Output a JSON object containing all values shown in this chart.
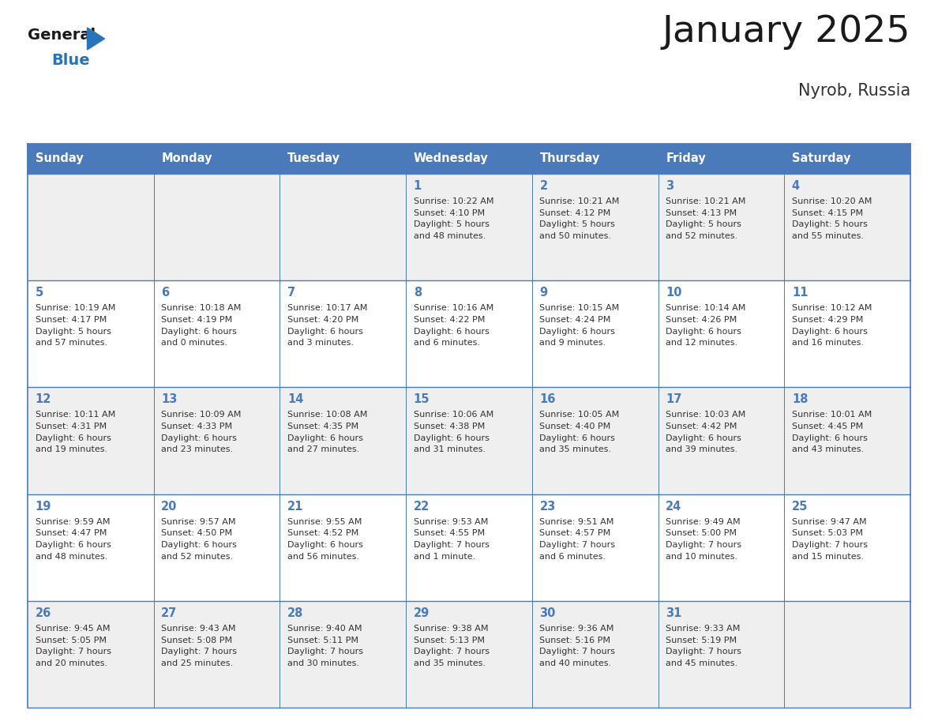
{
  "title": "January 2025",
  "subtitle": "Nyrob, Russia",
  "days_of_week": [
    "Sunday",
    "Monday",
    "Tuesday",
    "Wednesday",
    "Thursday",
    "Friday",
    "Saturday"
  ],
  "header_bg": "#4a7aba",
  "header_text_color": "#FFFFFF",
  "cell_bg_even": "#efefef",
  "cell_bg_odd": "#FFFFFF",
  "cell_border_color": "#4a7aba",
  "title_color": "#1a1a1a",
  "subtitle_color": "#333333",
  "day_number_color": "#4a7aba",
  "cell_text_color": "#333333",
  "logo_general_color": "#1a1a1a",
  "logo_blue_color": "#2874b8",
  "weeks": [
    [
      {
        "date": "",
        "sunrise": "",
        "sunset": "",
        "daylight": ""
      },
      {
        "date": "",
        "sunrise": "",
        "sunset": "",
        "daylight": ""
      },
      {
        "date": "",
        "sunrise": "",
        "sunset": "",
        "daylight": ""
      },
      {
        "date": "1",
        "sunrise": "10:22 AM",
        "sunset": "4:10 PM",
        "daylight": "5 hours and 48 minutes."
      },
      {
        "date": "2",
        "sunrise": "10:21 AM",
        "sunset": "4:12 PM",
        "daylight": "5 hours and 50 minutes."
      },
      {
        "date": "3",
        "sunrise": "10:21 AM",
        "sunset": "4:13 PM",
        "daylight": "5 hours and 52 minutes."
      },
      {
        "date": "4",
        "sunrise": "10:20 AM",
        "sunset": "4:15 PM",
        "daylight": "5 hours and 55 minutes."
      }
    ],
    [
      {
        "date": "5",
        "sunrise": "10:19 AM",
        "sunset": "4:17 PM",
        "daylight": "5 hours and 57 minutes."
      },
      {
        "date": "6",
        "sunrise": "10:18 AM",
        "sunset": "4:19 PM",
        "daylight": "6 hours and 0 minutes."
      },
      {
        "date": "7",
        "sunrise": "10:17 AM",
        "sunset": "4:20 PM",
        "daylight": "6 hours and 3 minutes."
      },
      {
        "date": "8",
        "sunrise": "10:16 AM",
        "sunset": "4:22 PM",
        "daylight": "6 hours and 6 minutes."
      },
      {
        "date": "9",
        "sunrise": "10:15 AM",
        "sunset": "4:24 PM",
        "daylight": "6 hours and 9 minutes."
      },
      {
        "date": "10",
        "sunrise": "10:14 AM",
        "sunset": "4:26 PM",
        "daylight": "6 hours and 12 minutes."
      },
      {
        "date": "11",
        "sunrise": "10:12 AM",
        "sunset": "4:29 PM",
        "daylight": "6 hours and 16 minutes."
      }
    ],
    [
      {
        "date": "12",
        "sunrise": "10:11 AM",
        "sunset": "4:31 PM",
        "daylight": "6 hours and 19 minutes."
      },
      {
        "date": "13",
        "sunrise": "10:09 AM",
        "sunset": "4:33 PM",
        "daylight": "6 hours and 23 minutes."
      },
      {
        "date": "14",
        "sunrise": "10:08 AM",
        "sunset": "4:35 PM",
        "daylight": "6 hours and 27 minutes."
      },
      {
        "date": "15",
        "sunrise": "10:06 AM",
        "sunset": "4:38 PM",
        "daylight": "6 hours and 31 minutes."
      },
      {
        "date": "16",
        "sunrise": "10:05 AM",
        "sunset": "4:40 PM",
        "daylight": "6 hours and 35 minutes."
      },
      {
        "date": "17",
        "sunrise": "10:03 AM",
        "sunset": "4:42 PM",
        "daylight": "6 hours and 39 minutes."
      },
      {
        "date": "18",
        "sunrise": "10:01 AM",
        "sunset": "4:45 PM",
        "daylight": "6 hours and 43 minutes."
      }
    ],
    [
      {
        "date": "19",
        "sunrise": "9:59 AM",
        "sunset": "4:47 PM",
        "daylight": "6 hours and 48 minutes."
      },
      {
        "date": "20",
        "sunrise": "9:57 AM",
        "sunset": "4:50 PM",
        "daylight": "6 hours and 52 minutes."
      },
      {
        "date": "21",
        "sunrise": "9:55 AM",
        "sunset": "4:52 PM",
        "daylight": "6 hours and 56 minutes."
      },
      {
        "date": "22",
        "sunrise": "9:53 AM",
        "sunset": "4:55 PM",
        "daylight": "7 hours and 1 minute."
      },
      {
        "date": "23",
        "sunrise": "9:51 AM",
        "sunset": "4:57 PM",
        "daylight": "7 hours and 6 minutes."
      },
      {
        "date": "24",
        "sunrise": "9:49 AM",
        "sunset": "5:00 PM",
        "daylight": "7 hours and 10 minutes."
      },
      {
        "date": "25",
        "sunrise": "9:47 AM",
        "sunset": "5:03 PM",
        "daylight": "7 hours and 15 minutes."
      }
    ],
    [
      {
        "date": "26",
        "sunrise": "9:45 AM",
        "sunset": "5:05 PM",
        "daylight": "7 hours and 20 minutes."
      },
      {
        "date": "27",
        "sunrise": "9:43 AM",
        "sunset": "5:08 PM",
        "daylight": "7 hours and 25 minutes."
      },
      {
        "date": "28",
        "sunrise": "9:40 AM",
        "sunset": "5:11 PM",
        "daylight": "7 hours and 30 minutes."
      },
      {
        "date": "29",
        "sunrise": "9:38 AM",
        "sunset": "5:13 PM",
        "daylight": "7 hours and 35 minutes."
      },
      {
        "date": "30",
        "sunrise": "9:36 AM",
        "sunset": "5:16 PM",
        "daylight": "7 hours and 40 minutes."
      },
      {
        "date": "31",
        "sunrise": "9:33 AM",
        "sunset": "5:19 PM",
        "daylight": "7 hours and 45 minutes."
      },
      {
        "date": "",
        "sunrise": "",
        "sunset": "",
        "daylight": ""
      }
    ]
  ]
}
